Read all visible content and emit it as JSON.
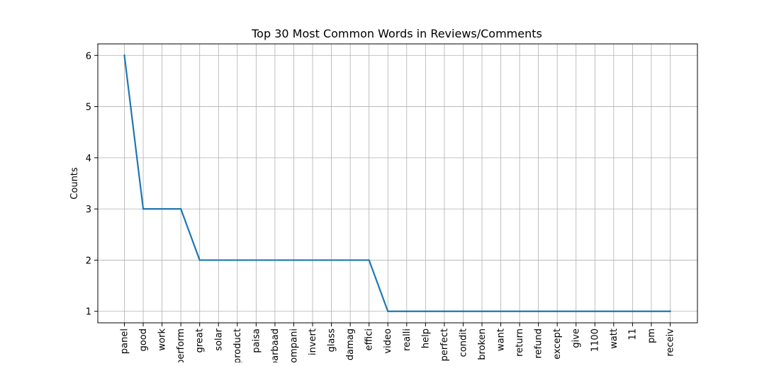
{
  "chart_data": {
    "type": "line",
    "title": "Top 30 Most Common Words in Reviews/Comments",
    "xlabel": "",
    "ylabel": "Counts",
    "categories": [
      "panel",
      "good",
      "work",
      "perform",
      "great",
      "solar",
      "product",
      "paisa",
      "barbaad",
      "compani",
      "invert",
      "glass",
      "damag",
      "effici",
      "video",
      "realli",
      "help",
      "perfect",
      "condit",
      "broken",
      "want",
      "return",
      "refund",
      "except",
      "give",
      "1100",
      "watt",
      "11",
      "pm",
      "receiv"
    ],
    "series": [
      {
        "values": [
          6,
          3,
          3,
          3,
          2,
          2,
          2,
          2,
          2,
          2,
          2,
          2,
          2,
          2,
          1,
          1,
          1,
          1,
          1,
          1,
          1,
          1,
          1,
          1,
          1,
          1,
          1,
          1,
          1,
          1
        ]
      }
    ],
    "yticks": [
      1,
      2,
      3,
      4,
      5,
      6
    ],
    "ylim": [
      0.775,
      6.225
    ],
    "grid": true,
    "line_color": "#1f77b4",
    "grid_color": "#b0b0b0"
  }
}
